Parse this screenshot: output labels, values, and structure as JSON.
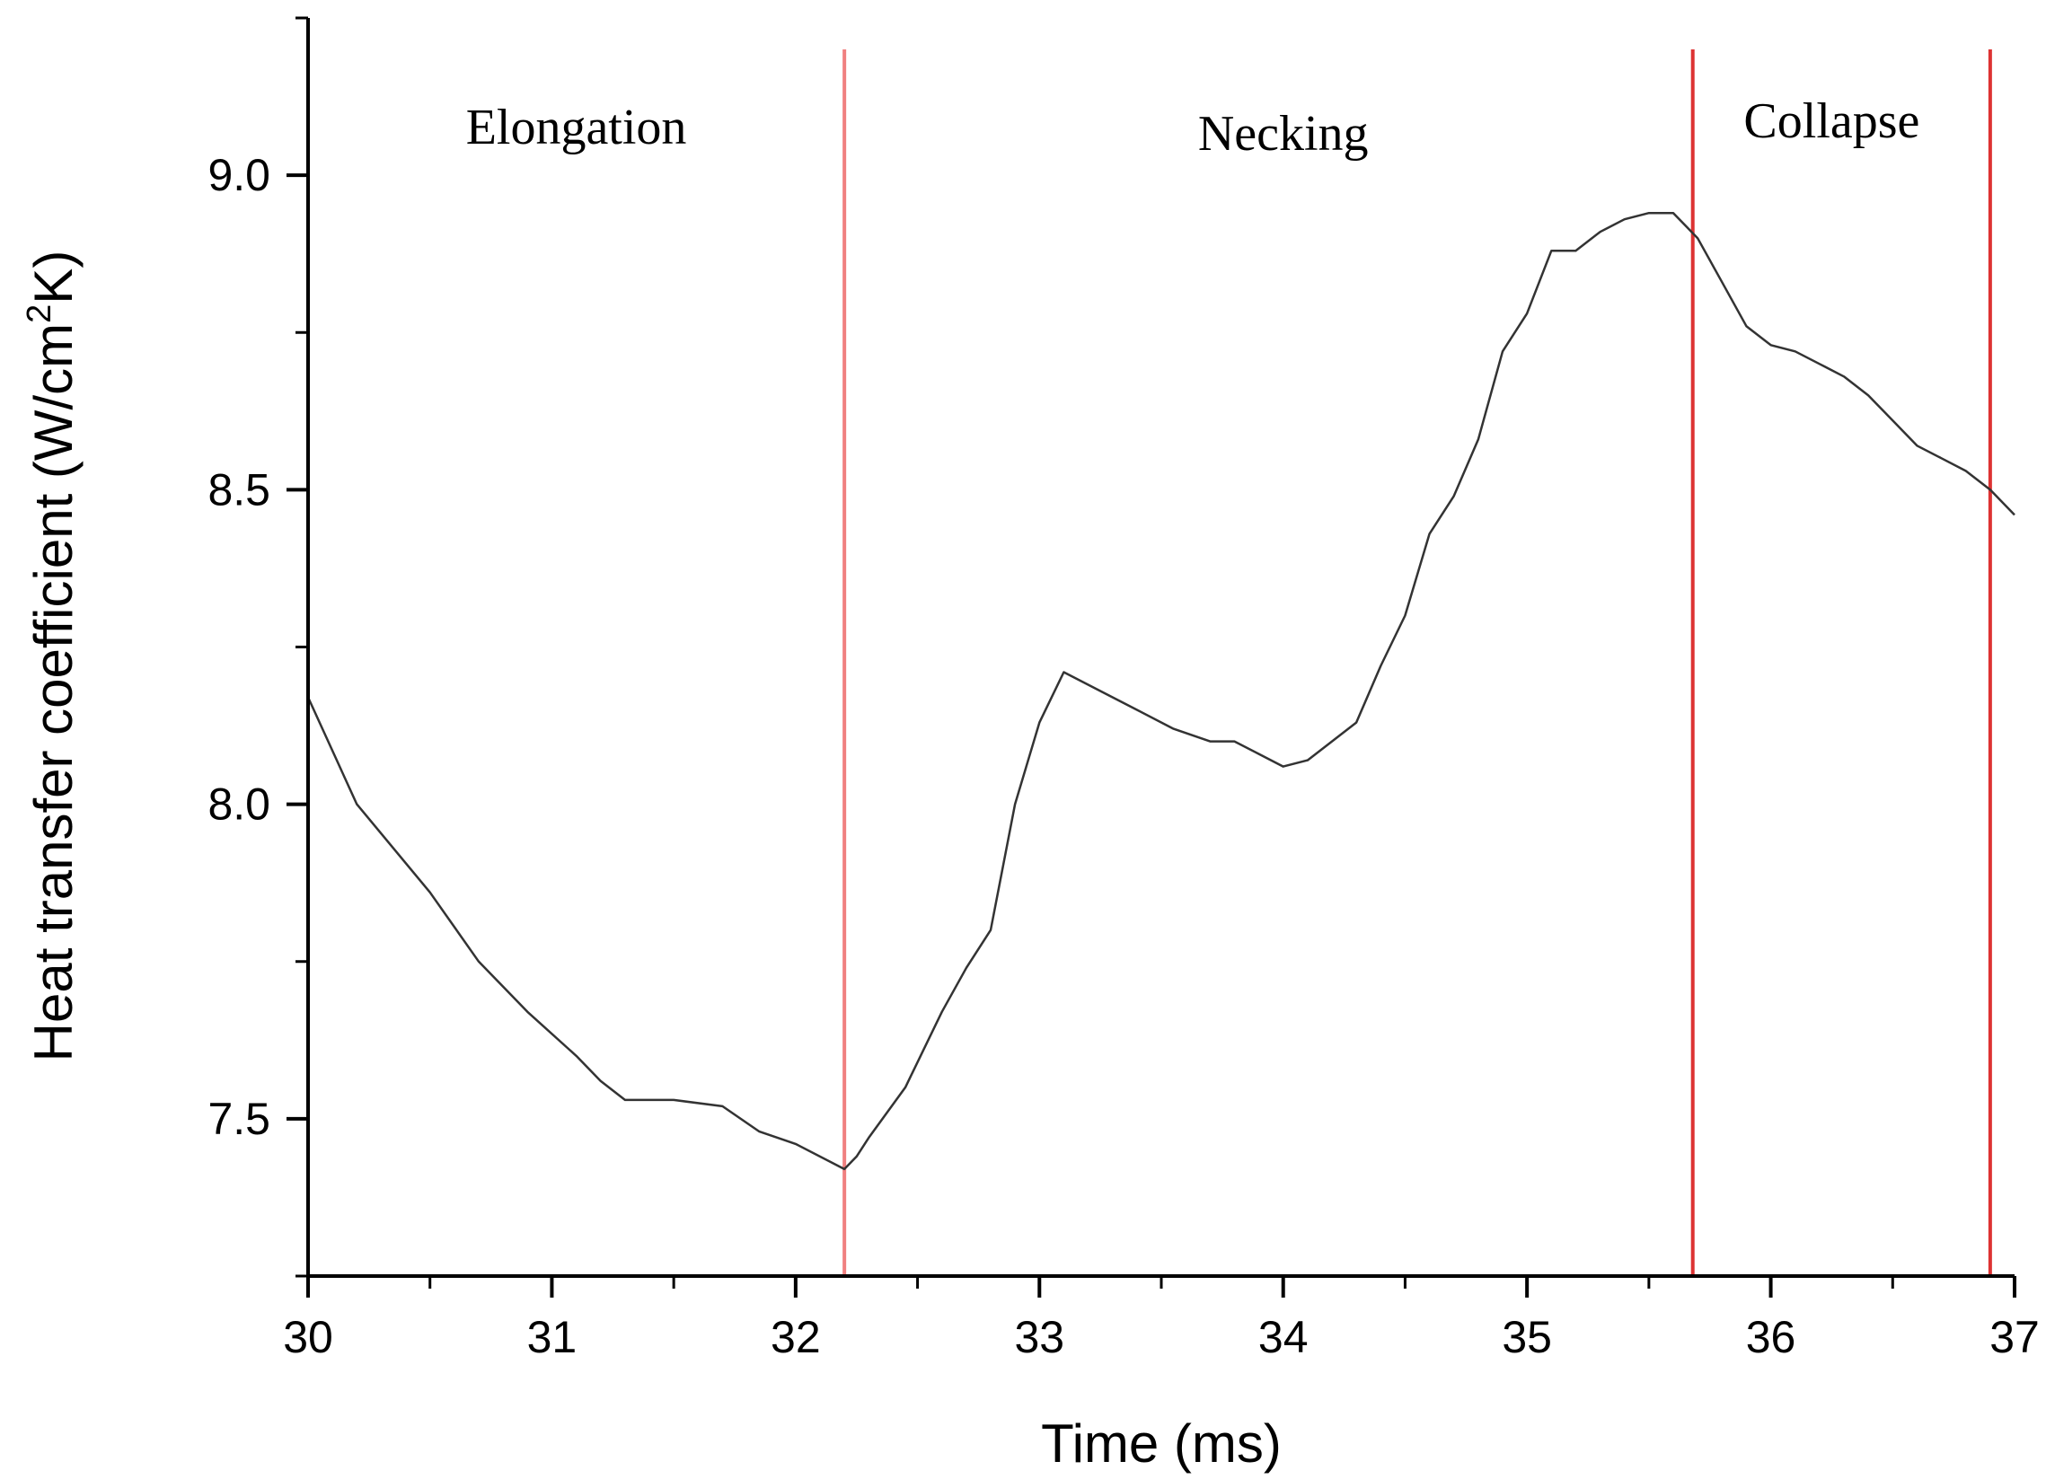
{
  "chart_data": {
    "type": "line",
    "title": "",
    "xlabel": "Time (ms)",
    "ylabel_parts": {
      "main": "Heat transfer coefficient (W/cm",
      "superscript": "2",
      "end": "K)"
    },
    "xlim": [
      30,
      37
    ],
    "ylim": [
      7.25,
      9.25
    ],
    "x_ticks": [
      30,
      31,
      32,
      33,
      34,
      35,
      36,
      37
    ],
    "x_tick_labels": [
      "30",
      "31",
      "32",
      "33",
      "34",
      "35",
      "36",
      "37"
    ],
    "y_ticks": [
      7.5,
      8.0,
      8.5,
      9.0
    ],
    "y_tick_labels": [
      "7.5",
      "8.0",
      "8.5",
      "9.0"
    ],
    "series": [
      {
        "name": "Heat transfer coefficient",
        "color": "#333333",
        "x": [
          30.0,
          30.2,
          30.5,
          30.7,
          30.9,
          31.1,
          31.2,
          31.3,
          31.5,
          31.7,
          31.85,
          32.0,
          32.2,
          32.25,
          32.3,
          32.45,
          32.6,
          32.7,
          32.8,
          32.9,
          33.0,
          33.1,
          33.25,
          33.4,
          33.55,
          33.7,
          33.8,
          33.9,
          34.0,
          34.1,
          34.2,
          34.3,
          34.4,
          34.5,
          34.6,
          34.7,
          34.8,
          34.9,
          35.0,
          35.1,
          35.2,
          35.3,
          35.4,
          35.5,
          35.6,
          35.7,
          35.8,
          35.9,
          36.0,
          36.1,
          36.2,
          36.3,
          36.4,
          36.5,
          36.6,
          36.7,
          36.8,
          36.9,
          37.0
        ],
        "y": [
          8.17,
          8.0,
          7.86,
          7.75,
          7.67,
          7.6,
          7.56,
          7.53,
          7.53,
          7.52,
          7.48,
          7.46,
          7.42,
          7.44,
          7.47,
          7.55,
          7.67,
          7.74,
          7.8,
          8.0,
          8.13,
          8.21,
          8.18,
          8.15,
          8.12,
          8.1,
          8.1,
          8.08,
          8.06,
          8.07,
          8.1,
          8.13,
          8.22,
          8.3,
          8.43,
          8.49,
          8.58,
          8.72,
          8.78,
          8.88,
          8.88,
          8.91,
          8.93,
          8.94,
          8.94,
          8.9,
          8.83,
          8.76,
          8.73,
          8.72,
          8.7,
          8.68,
          8.65,
          8.61,
          8.57,
          8.55,
          8.53,
          8.5,
          8.46
        ]
      }
    ],
    "vertical_lines": [
      {
        "x": 32.2,
        "color": "#f08080"
      },
      {
        "x": 35.68,
        "color": "#dd3333"
      },
      {
        "x": 36.9,
        "color": "#dd3333"
      }
    ],
    "phase_annotations": [
      {
        "label": "Elongation",
        "x": 31.1,
        "y": 9.05
      },
      {
        "label": "Necking",
        "x": 34.0,
        "y": 9.04
      },
      {
        "label": "Collapse",
        "x": 36.25,
        "y": 9.06
      }
    ]
  }
}
